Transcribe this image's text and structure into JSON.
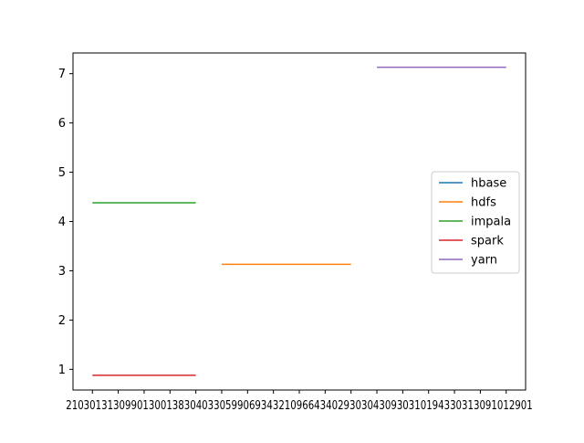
{
  "chart_data": {
    "type": "line",
    "title": "",
    "xlabel": "",
    "ylabel": "",
    "x_ticks": [
      "21030130",
      "21031309",
      "21049018",
      "21019308",
      "21091803",
      "21048031",
      "21039019",
      "21069443",
      "21040430",
      "21049019",
      "21099301",
      "21040430",
      "21091804",
      "21038301",
      "21091901",
      "2103801",
      "21094011",
      "21112901"
    ],
    "x_tick_display": "2103013130990130013830403305990693432109664340293030430930310194330313091012901",
    "yticks": [
      1,
      2,
      3,
      4,
      5,
      6,
      7
    ],
    "ylim": [
      0.58,
      7.42
    ],
    "xlim": [
      -0.75,
      16.75
    ],
    "grid": false,
    "legend_position": "center-right",
    "series": [
      {
        "name": "hbase",
        "color": "#1f77b4",
        "x": [],
        "y": []
      },
      {
        "name": "hdfs",
        "color": "#ff7f0e",
        "x": [
          5,
          6,
          7,
          8,
          9,
          10
        ],
        "y": [
          3.13,
          3.13,
          3.13,
          3.13,
          3.13,
          3.13
        ]
      },
      {
        "name": "impala",
        "color": "#2ca02c",
        "x": [
          0,
          1,
          2,
          3,
          4
        ],
        "y": [
          4.38,
          4.38,
          4.38,
          4.38,
          4.38
        ]
      },
      {
        "name": "spark",
        "color": "#d62728",
        "x": [
          0,
          1,
          2,
          3,
          4
        ],
        "y": [
          0.88,
          0.88,
          0.88,
          0.88,
          0.88
        ]
      },
      {
        "name": "yarn",
        "color": "#9467bd",
        "x": [
          11,
          12,
          13,
          14,
          15,
          16
        ],
        "y": [
          7.13,
          7.13,
          7.13,
          7.13,
          7.13,
          7.13
        ]
      }
    ]
  }
}
